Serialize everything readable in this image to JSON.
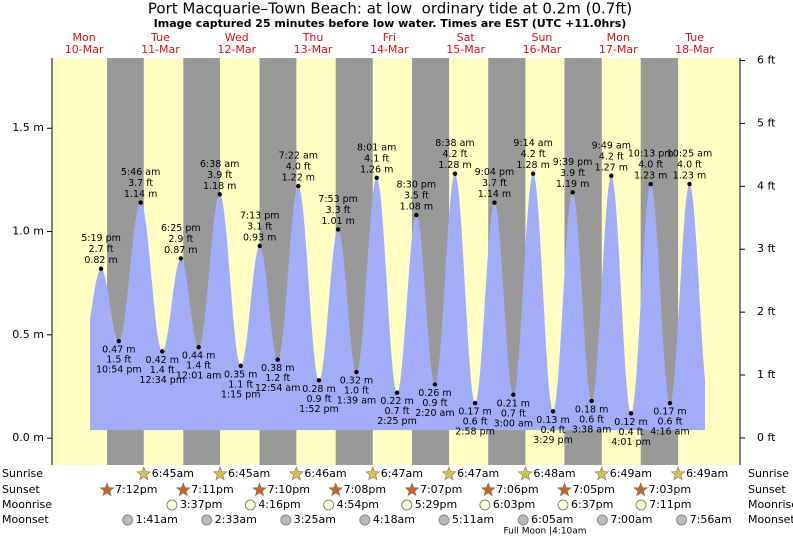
{
  "title": "Port Macquarie–Town Beach: at low  ordinary tide at 0.2m (0.7ft)",
  "subtitle": "Image captured 25 minutes before low water. Times are EST (UTC +11.0hrs)",
  "row_labels": {
    "sunrise": "Sunrise",
    "sunset": "Sunset",
    "moonrise": "Moonrise",
    "moonset": "Moonset"
  },
  "moon_phase": "Full Moon |4:10am",
  "chart_data": {
    "type": "tide",
    "ylim": [
      -0.13,
      1.84
    ],
    "yticks": [
      {
        "value": 0,
        "label": "0.0 m"
      },
      {
        "value": 0.5,
        "label": "0.5 m"
      },
      {
        "value": 1,
        "label": "1.0 m"
      },
      {
        "value": 1.5,
        "label": "1.5 m"
      }
    ],
    "y2lim": [
      -0.43,
      6.04
    ],
    "y2ticks": [
      {
        "value": 0,
        "label": "0 ft"
      },
      {
        "value": 1,
        "label": "1 ft"
      },
      {
        "value": 2,
        "label": "2 ft"
      },
      {
        "value": 3,
        "label": "3 ft"
      },
      {
        "value": 4,
        "label": "4 ft"
      },
      {
        "value": 5,
        "label": "5 ft"
      },
      {
        "value": 6,
        "label": "6 ft"
      }
    ],
    "days": [
      {
        "weekday": "Mon",
        "date": "10-Mar",
        "sunset": "7:12pm",
        "tides": [
          {
            "time": "5:19 pm",
            "height": 0.82,
            "height_label": "0.82 m",
            "feet_label": "2.7 ft"
          },
          {
            "time": "10:54 pm",
            "height": 0.47,
            "height_label": "0.47 m",
            "feet_label": "1.5 ft"
          }
        ]
      },
      {
        "weekday": "Tue",
        "date": "11-Mar",
        "sunrise": "6:45am",
        "sunset": "7:11pm",
        "moonrise": "3:37pm",
        "moonset": "1:41am",
        "tides": [
          {
            "time": "5:46 am",
            "height": 1.14,
            "height_label": "1.14 m",
            "feet_label": "3.7 ft"
          },
          {
            "time": "12:34 pm",
            "height": 0.42,
            "height_label": "0.42 m",
            "feet_label": "1.4 ft"
          },
          {
            "time": "6:25 pm",
            "height": 0.87,
            "height_label": "0.87 m",
            "feet_label": "2.9 ft"
          }
        ]
      },
      {
        "weekday": "Wed",
        "date": "12-Mar",
        "sunrise": "6:45am",
        "sunset": "7:10pm",
        "moonrise": "4:16pm",
        "moonset": "2:33am",
        "tides": [
          {
            "time": "12:01 am",
            "height": 0.44,
            "height_label": "0.44 m",
            "feet_label": "1.4 ft"
          },
          {
            "time": "6:38 am",
            "height": 1.18,
            "height_label": "1.18 m",
            "feet_label": "3.9 ft"
          },
          {
            "time": "1:15 pm",
            "height": 0.35,
            "height_label": "0.35 m",
            "feet_label": "1.1 ft"
          },
          {
            "time": "7:13 pm",
            "height": 0.93,
            "height_label": "0.93 m",
            "feet_label": "3.1 ft"
          }
        ]
      },
      {
        "weekday": "Thu",
        "date": "13-Mar",
        "sunrise": "6:46am",
        "sunset": "7:08pm",
        "moonrise": "4:54pm",
        "moonset": "3:25am",
        "tides": [
          {
            "time": "12:54 am",
            "height": 0.38,
            "height_label": "0.38 m",
            "feet_label": "1.2 ft"
          },
          {
            "time": "7:22 am",
            "height": 1.22,
            "height_label": "1.22 m",
            "feet_label": "4.0 ft"
          },
          {
            "time": "1:52 pm",
            "height": 0.28,
            "height_label": "0.28 m",
            "feet_label": "0.9 ft"
          },
          {
            "time": "7:53 pm",
            "height": 1.01,
            "height_label": "1.01 m",
            "feet_label": "3.3 ft"
          }
        ]
      },
      {
        "weekday": "Fri",
        "date": "14-Mar",
        "sunrise": "6:47am",
        "sunset": "7:07pm",
        "moonrise": "5:29pm",
        "moonset": "4:18am",
        "tides": [
          {
            "time": "1:39 am",
            "height": 0.32,
            "height_label": "0.32 m",
            "feet_label": "1.0 ft"
          },
          {
            "time": "8:01 am",
            "height": 1.26,
            "height_label": "1.26 m",
            "feet_label": "4.1 ft"
          },
          {
            "time": "2:25 pm",
            "height": 0.22,
            "height_label": "0.22 m",
            "feet_label": "0.7 ft"
          },
          {
            "time": "8:30 pm",
            "height": 1.08,
            "height_label": "1.08 m",
            "feet_label": "3.5 ft"
          }
        ]
      },
      {
        "weekday": "Sat",
        "date": "15-Mar",
        "sunrise": "6:47am",
        "sunset": "7:06pm",
        "moonrise": "6:03pm",
        "moonset": "5:11am",
        "tides": [
          {
            "time": "2:20 am",
            "height": 0.26,
            "height_label": "0.26 m",
            "feet_label": "0.9 ft"
          },
          {
            "time": "8:38 am",
            "height": 1.28,
            "height_label": "1.28 m",
            "feet_label": "4.2 ft"
          },
          {
            "time": "2:58 pm",
            "height": 0.17,
            "height_label": "0.17 m",
            "feet_label": "0.6 ft"
          },
          {
            "time": "9:04 pm",
            "height": 1.14,
            "height_label": "1.14 m",
            "feet_label": "3.7 ft"
          }
        ]
      },
      {
        "weekday": "Sun",
        "date": "16-Mar",
        "sunrise": "6:48am",
        "sunset": "7:05pm",
        "moonrise": "6:37pm",
        "moonset": "6:05am",
        "tides": [
          {
            "time": "3:00 am",
            "height": 0.21,
            "height_label": "0.21 m",
            "feet_label": "0.7 ft"
          },
          {
            "time": "9:14 am",
            "height": 1.28,
            "height_label": "1.28 m",
            "feet_label": "4.2 ft"
          },
          {
            "time": "3:29 pm",
            "height": 0.13,
            "height_label": "0.13 m",
            "feet_label": "0.4 ft"
          },
          {
            "time": "9:39 pm",
            "height": 1.19,
            "height_label": "1.19 m",
            "feet_label": "3.9 ft"
          }
        ]
      },
      {
        "weekday": "Mon",
        "date": "17-Mar",
        "sunrise": "6:49am",
        "sunset": "7:03pm",
        "moonrise": "7:11pm",
        "moonset": "7:00am",
        "tides": [
          {
            "time": "3:38 am",
            "height": 0.18,
            "height_label": "0.18 m",
            "feet_label": "0.6 ft"
          },
          {
            "time": "9:49 am",
            "height": 1.27,
            "height_label": "1.27 m",
            "feet_label": "4.2 ft"
          },
          {
            "time": "4:01 pm",
            "height": 0.12,
            "height_label": "0.12 m",
            "feet_label": "0.4 ft"
          },
          {
            "time": "10:13 pm",
            "height": 1.23,
            "height_label": "1.23 m",
            "feet_label": "4.0 ft"
          }
        ]
      },
      {
        "weekday": "Tue",
        "date": "18-Mar",
        "sunrise": "6:49am",
        "moonset": "7:56am",
        "tides": [
          {
            "time": "4:16 am",
            "height": 0.17,
            "height_label": "0.17 m",
            "feet_label": "0.6 ft"
          },
          {
            "time": "10:25 am",
            "height": 1.23,
            "height_label": "1.23 m",
            "feet_label": "4.0 ft"
          }
        ]
      }
    ]
  }
}
